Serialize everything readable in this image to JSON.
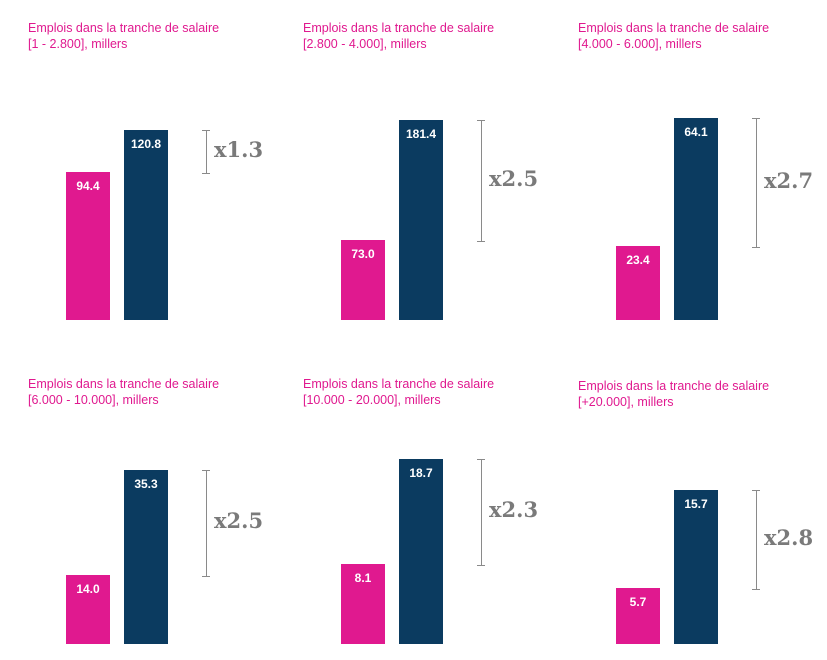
{
  "colors": {
    "series_a": "#e0198f",
    "series_b": "#0b3b60",
    "title": "#e0198f",
    "multiplier": "#7a7a7a"
  },
  "chart_data": [
    {
      "type": "bar",
      "title_line1": "Emplois dans la tranche de salaire",
      "title_line2": "[1 - 2.800], millers",
      "values": [
        94.4,
        120.8
      ],
      "labels": [
        "94.4",
        "120.8"
      ],
      "multiplier": "x1.3"
    },
    {
      "type": "bar",
      "title_line1": "Emplois dans la tranche de salaire",
      "title_line2": "[2.800 - 4.000], millers",
      "values": [
        73.0,
        181.4
      ],
      "labels": [
        "73.0",
        "181.4"
      ],
      "multiplier": "x2.5"
    },
    {
      "type": "bar",
      "title_line1": "Emplois dans la tranche de salaire",
      "title_line2": "[4.000 - 6.000], millers",
      "values": [
        23.4,
        64.1
      ],
      "labels": [
        "23.4",
        "64.1"
      ],
      "multiplier": "x2.7"
    },
    {
      "type": "bar",
      "title_line1": "Emplois dans la tranche de salaire",
      "title_line2": "[6.000 - 10.000], millers",
      "values": [
        14.0,
        35.3
      ],
      "labels": [
        "14.0",
        "35.3"
      ],
      "multiplier": "x2.5"
    },
    {
      "type": "bar",
      "title_line1": "Emplois dans la tranche de salaire",
      "title_line2": "[10.000 - 20.000], millers",
      "values": [
        8.1,
        18.7
      ],
      "labels": [
        "8.1",
        "18.7"
      ],
      "multiplier": "x2.3"
    },
    {
      "type": "bar",
      "title_line1": "Emplois dans la tranche de salaire",
      "title_line2": "[+20.000], millers",
      "values": [
        5.7,
        15.7
      ],
      "labels": [
        "5.7",
        "15.7"
      ],
      "multiplier": "x2.8"
    }
  ]
}
